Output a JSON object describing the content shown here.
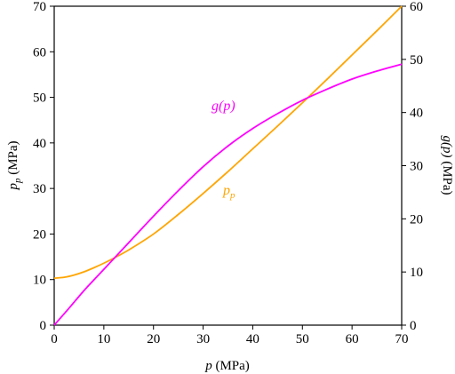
{
  "chart_data": {
    "type": "line",
    "x_axis": {
      "label_var": "p",
      "label_unit": " (MPa)",
      "range": [
        0,
        70
      ],
      "ticks": [
        "0",
        "10",
        "20",
        "30",
        "40",
        "50",
        "60",
        "70"
      ]
    },
    "y_left": {
      "label_var": "p",
      "label_sub": "p",
      "label_unit": " (MPa)",
      "range": [
        0,
        70
      ],
      "ticks": [
        "0",
        "10",
        "20",
        "30",
        "40",
        "50",
        "60",
        "70"
      ]
    },
    "y_right": {
      "label_var": "g(p)",
      "label_unit": " (MPa)",
      "range": [
        0,
        60
      ],
      "ticks": [
        "0",
        "10",
        "20",
        "30",
        "40",
        "50",
        "60"
      ]
    },
    "grid": false,
    "series": [
      {
        "label_var": "p",
        "label_sub": "p",
        "axis": "left",
        "color": "#FFA500",
        "x": [
          0,
          2,
          4,
          6,
          8,
          10,
          12,
          15,
          20,
          25,
          30,
          35,
          40,
          45,
          50,
          55,
          60,
          65,
          70
        ],
        "y": [
          10.3,
          10.5,
          11.0,
          11.7,
          12.6,
          13.6,
          14.7,
          16.5,
          20.0,
          24.3,
          28.9,
          33.7,
          38.7,
          43.7,
          48.8,
          54.0,
          59.3,
          64.6,
          70.0
        ]
      },
      {
        "label_var": "g(p)",
        "axis": "right",
        "color": "#FF00FF",
        "x": [
          0,
          3,
          6,
          9,
          12,
          15,
          20,
          25,
          30,
          35,
          40,
          45,
          50,
          55,
          60,
          65,
          70
        ],
        "y": [
          0,
          3.2,
          6.5,
          9.5,
          12.5,
          15.5,
          20.5,
          25.3,
          29.8,
          33.7,
          37.0,
          39.8,
          42.3,
          44.4,
          46.3,
          47.8,
          49.1
        ]
      }
    ]
  }
}
